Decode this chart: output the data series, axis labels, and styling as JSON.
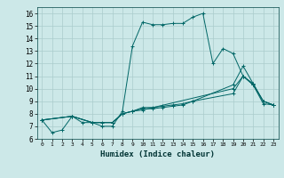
{
  "xlabel": "Humidex (Indice chaleur)",
  "bg_color": "#cce8e8",
  "grid_color": "#aacccc",
  "line_color": "#006666",
  "xlim": [
    -0.5,
    23.5
  ],
  "ylim": [
    6,
    16.5
  ],
  "xticks": [
    0,
    1,
    2,
    3,
    4,
    5,
    6,
    7,
    8,
    9,
    10,
    11,
    12,
    13,
    14,
    15,
    16,
    17,
    18,
    19,
    20,
    21,
    22,
    23
  ],
  "yticks": [
    6,
    7,
    8,
    9,
    10,
    11,
    12,
    13,
    14,
    15,
    16
  ],
  "lines": [
    {
      "x": [
        0,
        1,
        2,
        3,
        4,
        5,
        6,
        7,
        8,
        9,
        10,
        11,
        12,
        13,
        14,
        15,
        16,
        17,
        18,
        19,
        20,
        21,
        22,
        23
      ],
      "y": [
        7.5,
        6.5,
        6.7,
        7.8,
        7.3,
        7.3,
        7.0,
        7.0,
        8.2,
        13.4,
        15.3,
        15.1,
        15.1,
        15.2,
        15.2,
        15.7,
        16.0,
        12.0,
        13.2,
        12.8,
        11.0,
        10.3,
        9.0,
        8.7
      ]
    },
    {
      "x": [
        0,
        3,
        5,
        6,
        7,
        8,
        9,
        10,
        11,
        12,
        13,
        14,
        15,
        19,
        20,
        21,
        22,
        23
      ],
      "y": [
        7.5,
        7.8,
        7.3,
        7.3,
        7.3,
        8.0,
        8.2,
        8.5,
        8.5,
        8.6,
        8.7,
        8.8,
        9.0,
        9.6,
        11.0,
        10.4,
        9.0,
        8.7
      ]
    },
    {
      "x": [
        0,
        3,
        5,
        7,
        8,
        9,
        10,
        11,
        12,
        13,
        14,
        15,
        19,
        20,
        21,
        22,
        23
      ],
      "y": [
        7.5,
        7.8,
        7.3,
        7.3,
        8.0,
        8.2,
        8.4,
        8.4,
        8.5,
        8.6,
        8.7,
        9.0,
        10.3,
        11.8,
        10.4,
        9.0,
        8.7
      ]
    },
    {
      "x": [
        0,
        3,
        5,
        7,
        8,
        9,
        10,
        19,
        20,
        21,
        22,
        23
      ],
      "y": [
        7.5,
        7.8,
        7.3,
        7.3,
        8.0,
        8.2,
        8.3,
        10.0,
        11.0,
        10.3,
        8.8,
        8.7
      ]
    }
  ]
}
